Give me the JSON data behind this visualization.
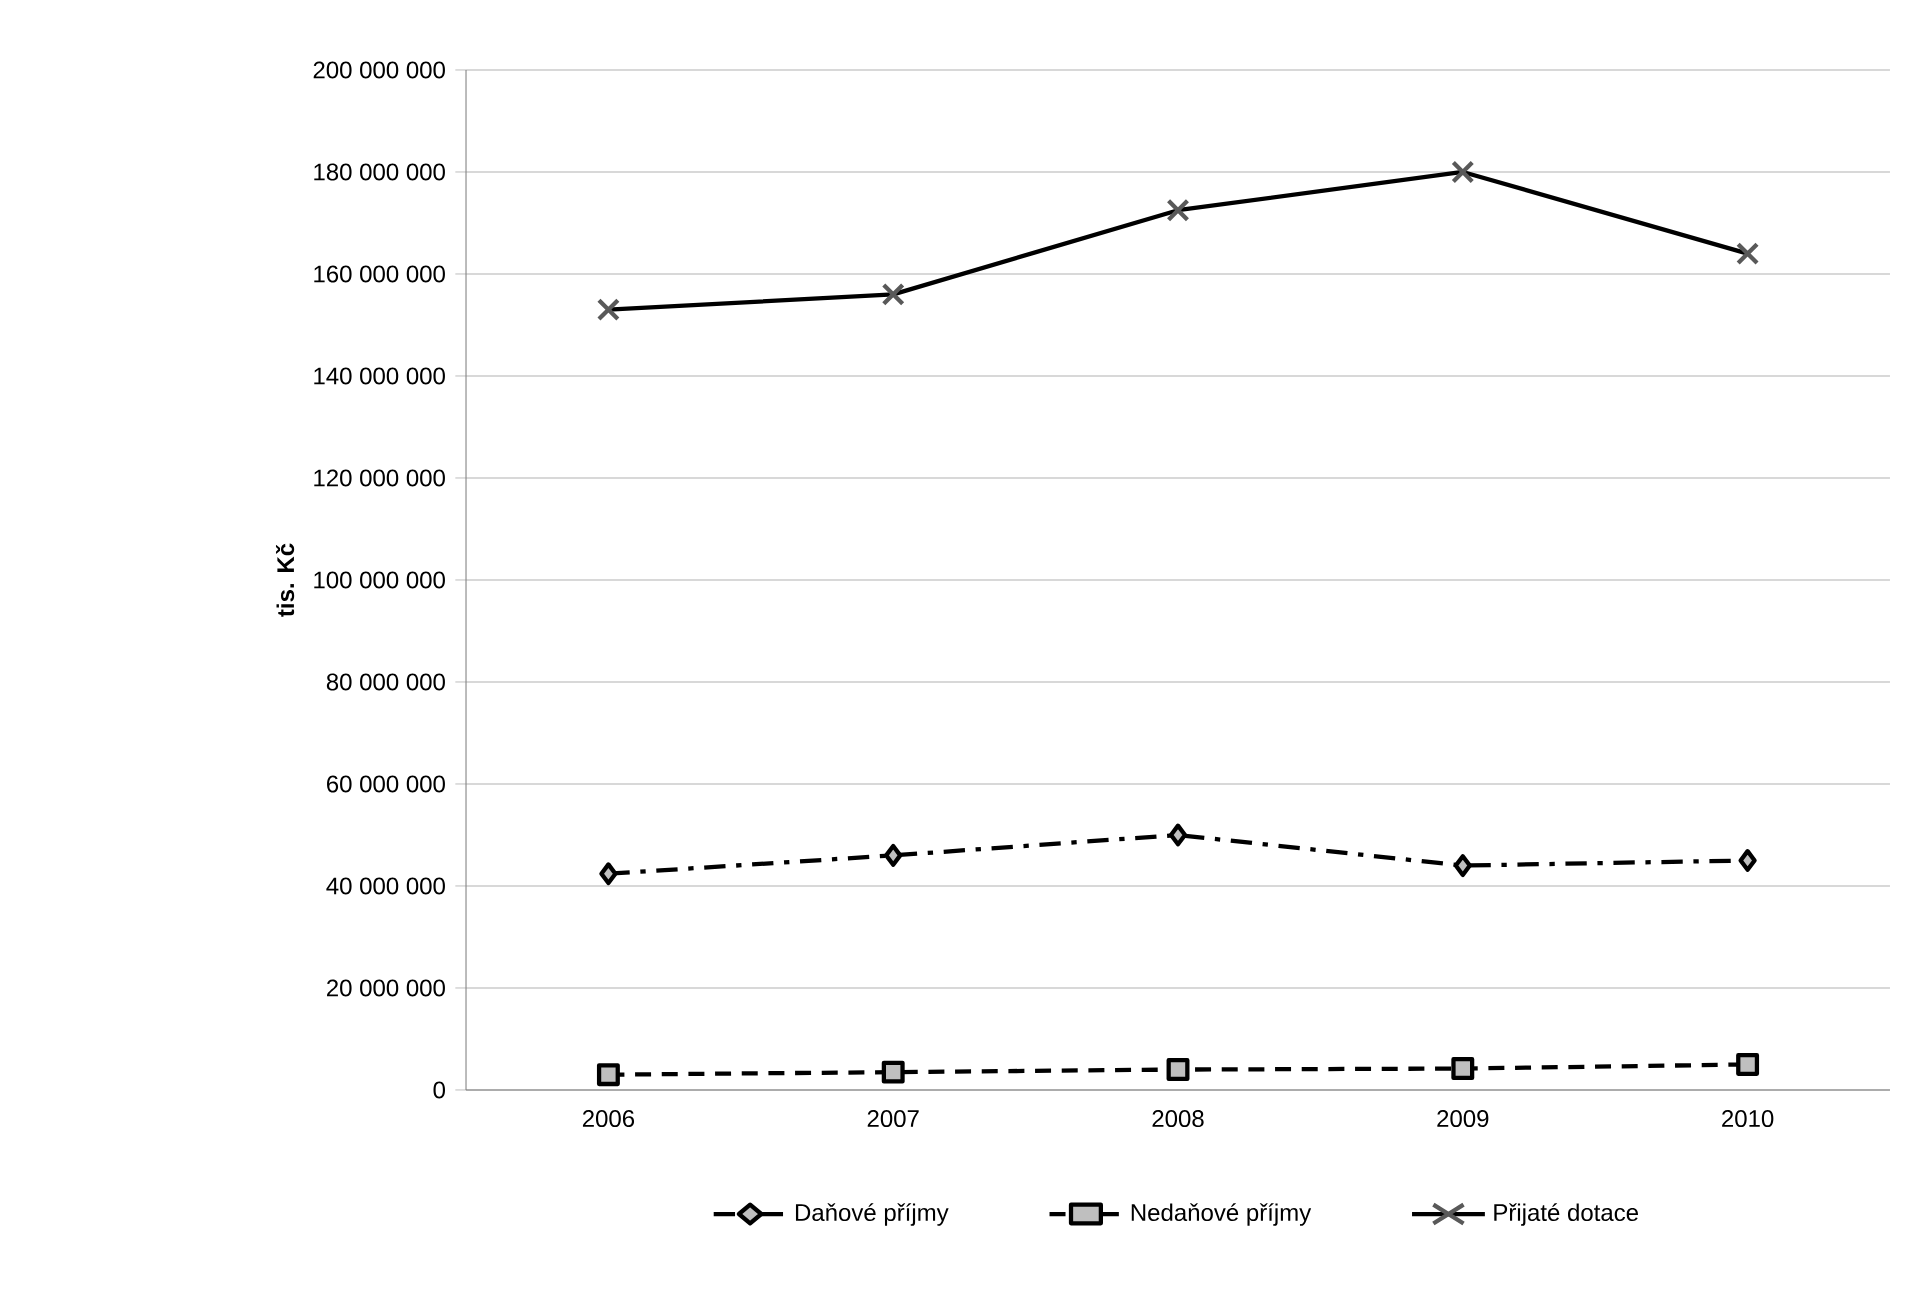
{
  "chart_data": {
    "type": "line",
    "ylabel": "tis. Kč",
    "categories": [
      "2006",
      "2007",
      "2008",
      "2009",
      "2010"
    ],
    "series": [
      {
        "name": "Daňové příjmy",
        "color": "#000000",
        "marker": "diamond",
        "line_style": "dashdot",
        "values": [
          42400000,
          46000000,
          50000000,
          44000000,
          45000000
        ]
      },
      {
        "name": "Nedaňové příjmy",
        "color": "#000000",
        "marker": "square",
        "line_style": "dashed",
        "values": [
          3000000,
          3500000,
          4000000,
          4200000,
          5000000
        ]
      },
      {
        "name": "Přijaté dotace",
        "color": "#000000",
        "marker": "cross",
        "line_style": "solid",
        "values": [
          153000000,
          156000000,
          172500000,
          180000000,
          164000000
        ]
      }
    ],
    "ylim": [
      0,
      200000000
    ],
    "yticks": [
      {
        "value": 0,
        "label": "0"
      },
      {
        "value": 20000000,
        "label": "20 000 000"
      },
      {
        "value": 40000000,
        "label": "40 000 000"
      },
      {
        "value": 60000000,
        "label": "60 000 000"
      },
      {
        "value": 80000000,
        "label": "80 000 000"
      },
      {
        "value": 100000000,
        "label": "100 000 000"
      },
      {
        "value": 120000000,
        "label": "120 000 000"
      },
      {
        "value": 140000000,
        "label": "140 000 000"
      },
      {
        "value": 160000000,
        "label": "160 000 000"
      },
      {
        "value": 180000000,
        "label": "180 000 000"
      },
      {
        "value": 200000000,
        "label": "200 000 000"
      }
    ],
    "grid": "y",
    "legend": "bottom"
  }
}
